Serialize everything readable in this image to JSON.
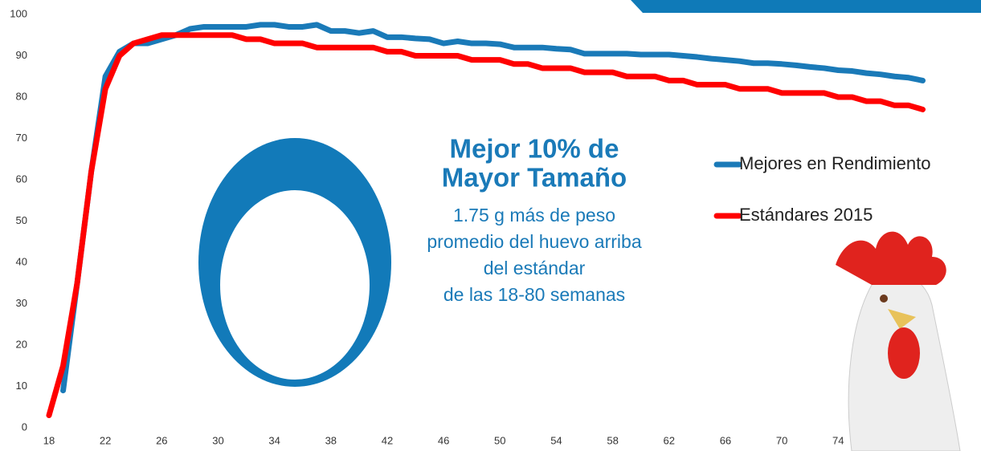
{
  "chart_data": {
    "type": "line",
    "x": [
      18,
      19,
      20,
      21,
      22,
      23,
      24,
      25,
      26,
      27,
      28,
      29,
      30,
      31,
      32,
      33,
      34,
      35,
      36,
      37,
      38,
      39,
      40,
      41,
      42,
      43,
      44,
      45,
      46,
      47,
      48,
      49,
      50,
      51,
      52,
      53,
      54,
      55,
      56,
      57,
      58,
      59,
      60,
      61,
      62,
      63,
      64,
      65,
      66,
      67,
      68,
      69,
      70,
      71,
      72,
      73,
      74,
      75,
      76,
      77,
      78,
      79,
      80
    ],
    "series": [
      {
        "name": "Mejores en Rendimiento",
        "color": "#1a7ab8",
        "values": [
          null,
          9,
          35,
          62,
          85,
          91,
          93,
          93,
          94,
          95,
          96.5,
          97,
          97,
          97,
          97,
          97.5,
          97.5,
          97,
          97,
          97.5,
          96,
          96,
          95.5,
          96,
          94.5,
          94.5,
          94.2,
          94,
          93,
          93.5,
          93,
          93,
          92.8,
          92,
          92,
          92,
          91.7,
          91.5,
          90.5,
          90.5,
          90.5,
          90.5,
          90.3,
          90.3,
          90.3,
          90,
          89.7,
          89.3,
          89,
          88.7,
          88.2,
          88.2,
          88,
          87.7,
          87.3,
          87,
          86.5,
          86.3,
          85.8,
          85.5,
          85,
          84.7,
          84
        ]
      },
      {
        "name": "Estándares 2015",
        "color": "#ff0000",
        "values": [
          3,
          15,
          35,
          62,
          82,
          90,
          93,
          94,
          95,
          95,
          95,
          95,
          95,
          95,
          94,
          94,
          93,
          93,
          93,
          92,
          92,
          92,
          92,
          92,
          91,
          91,
          90,
          90,
          90,
          90,
          89,
          89,
          89,
          88,
          88,
          87,
          87,
          87,
          86,
          86,
          86,
          85,
          85,
          85,
          84,
          84,
          83,
          83,
          83,
          82,
          82,
          82,
          81,
          81,
          81,
          81,
          80,
          80,
          79,
          79,
          78,
          78,
          77
        ]
      }
    ],
    "xlim": [
      18,
      80
    ],
    "xticks": [
      18,
      22,
      26,
      30,
      34,
      38,
      42,
      46,
      50,
      54,
      58,
      62,
      66,
      70,
      74
    ],
    "ylim": [
      0,
      100
    ],
    "yticks": [
      0,
      10,
      20,
      30,
      40,
      50,
      60,
      70,
      80,
      90,
      100
    ],
    "legend": "right",
    "annotations": {
      "title": [
        "Mejor 10% de",
        "Mayor Tamaño"
      ],
      "text": [
        "1.75 g más de peso",
        "promedio del huevo arriba",
        "del estándar",
        "de las 18-80 semanas"
      ]
    }
  }
}
